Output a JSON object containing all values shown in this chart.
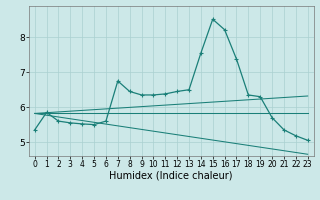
{
  "xlabel": "Humidex (Indice chaleur)",
  "bg_color": "#cce8e8",
  "line_color": "#1a7f78",
  "grid_color": "#aad0d0",
  "xlim": [
    -0.5,
    23.5
  ],
  "ylim": [
    4.6,
    8.9
  ],
  "xticks": [
    0,
    1,
    2,
    3,
    4,
    5,
    6,
    7,
    8,
    9,
    10,
    11,
    12,
    13,
    14,
    15,
    16,
    17,
    18,
    19,
    20,
    21,
    22,
    23
  ],
  "yticks": [
    5,
    6,
    7,
    8
  ],
  "line1_x": [
    0,
    1,
    2,
    3,
    4,
    5,
    6,
    7,
    8,
    9,
    10,
    11,
    12,
    13,
    14,
    15,
    16,
    17,
    18,
    19,
    20,
    21,
    22,
    23
  ],
  "line1_y": [
    5.35,
    5.85,
    5.6,
    5.55,
    5.52,
    5.5,
    5.6,
    6.75,
    6.45,
    6.35,
    6.35,
    6.38,
    6.45,
    6.5,
    7.55,
    8.52,
    8.22,
    7.38,
    6.35,
    6.3,
    5.7,
    5.35,
    5.18,
    5.05
  ],
  "line2_x": [
    0,
    23
  ],
  "line2_y": [
    5.82,
    6.32
  ],
  "line3_x": [
    0,
    23
  ],
  "line3_y": [
    5.82,
    5.82
  ],
  "line4_x": [
    0,
    23
  ],
  "line4_y": [
    5.82,
    4.65
  ],
  "tick_fontsize": 5.5,
  "xlabel_fontsize": 7
}
